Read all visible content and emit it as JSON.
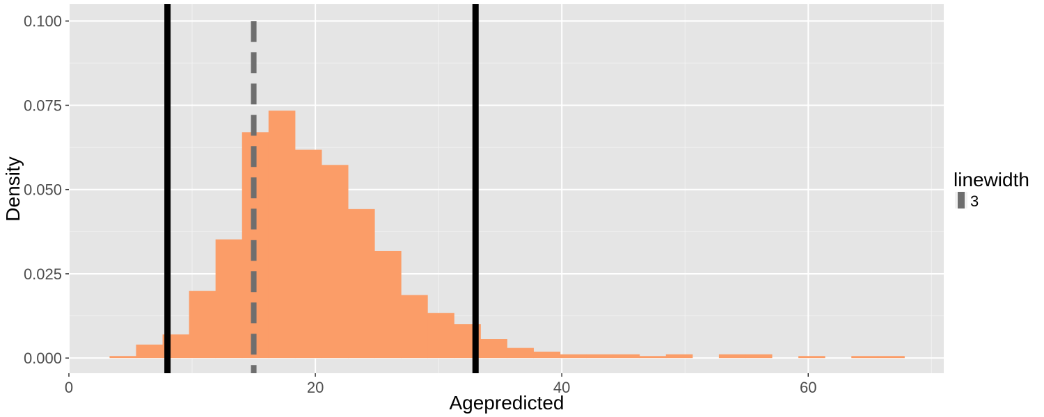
{
  "chart_data": {
    "type": "bar",
    "title": "",
    "xlabel": "Agepredicted",
    "ylabel": "Density",
    "xlim": [
      0,
      71
    ],
    "ylim": [
      -0.0045,
      0.105
    ],
    "x_ticks": [
      0,
      20,
      40,
      60
    ],
    "x_tick_labels": [
      "0",
      "20",
      "40",
      "60"
    ],
    "y_ticks": [
      0.0,
      0.025,
      0.05,
      0.075,
      0.1
    ],
    "y_tick_labels": [
      "0.000",
      "0.025",
      "0.050",
      "0.075",
      "0.100"
    ],
    "bin_width": 2.15,
    "bins": [
      {
        "x0": 3.3,
        "density": 0.0006
      },
      {
        "x0": 5.45,
        "density": 0.004
      },
      {
        "x0": 7.6,
        "density": 0.007
      },
      {
        "x0": 9.75,
        "density": 0.0199
      },
      {
        "x0": 11.9,
        "density": 0.0352
      },
      {
        "x0": 14.05,
        "density": 0.067
      },
      {
        "x0": 16.2,
        "density": 0.0734
      },
      {
        "x0": 18.35,
        "density": 0.0618
      },
      {
        "x0": 20.5,
        "density": 0.0573
      },
      {
        "x0": 22.65,
        "density": 0.0442
      },
      {
        "x0": 24.8,
        "density": 0.0318
      },
      {
        "x0": 26.95,
        "density": 0.0187
      },
      {
        "x0": 29.1,
        "density": 0.0134
      },
      {
        "x0": 31.25,
        "density": 0.0101
      },
      {
        "x0": 33.4,
        "density": 0.0056
      },
      {
        "x0": 35.55,
        "density": 0.003
      },
      {
        "x0": 37.7,
        "density": 0.0019
      },
      {
        "x0": 39.85,
        "density": 0.0011
      },
      {
        "x0": 42.0,
        "density": 0.0011
      },
      {
        "x0": 44.15,
        "density": 0.0011
      },
      {
        "x0": 46.3,
        "density": 0.0006
      },
      {
        "x0": 48.45,
        "density": 0.0011
      },
      {
        "x0": 52.75,
        "density": 0.0011
      },
      {
        "x0": 54.9,
        "density": 0.0011
      },
      {
        "x0": 59.2,
        "density": 0.0006
      },
      {
        "x0": 63.5,
        "density": 0.0006
      },
      {
        "x0": 65.65,
        "density": 0.0006
      }
    ],
    "vlines": [
      {
        "x": 8.0,
        "style": "solid",
        "color": "#000000"
      },
      {
        "x": 15.0,
        "style": "dashed",
        "color": "#6e6e6e",
        "ymax": 0.1
      },
      {
        "x": 33.0,
        "style": "solid",
        "color": "#000000"
      }
    ],
    "bar_color": "#fb9d68",
    "panel_background": "#e5e5e5",
    "grid": true,
    "legend": {
      "title": "linewidth",
      "items": [
        {
          "label": "3"
        }
      ],
      "position": "right"
    }
  }
}
